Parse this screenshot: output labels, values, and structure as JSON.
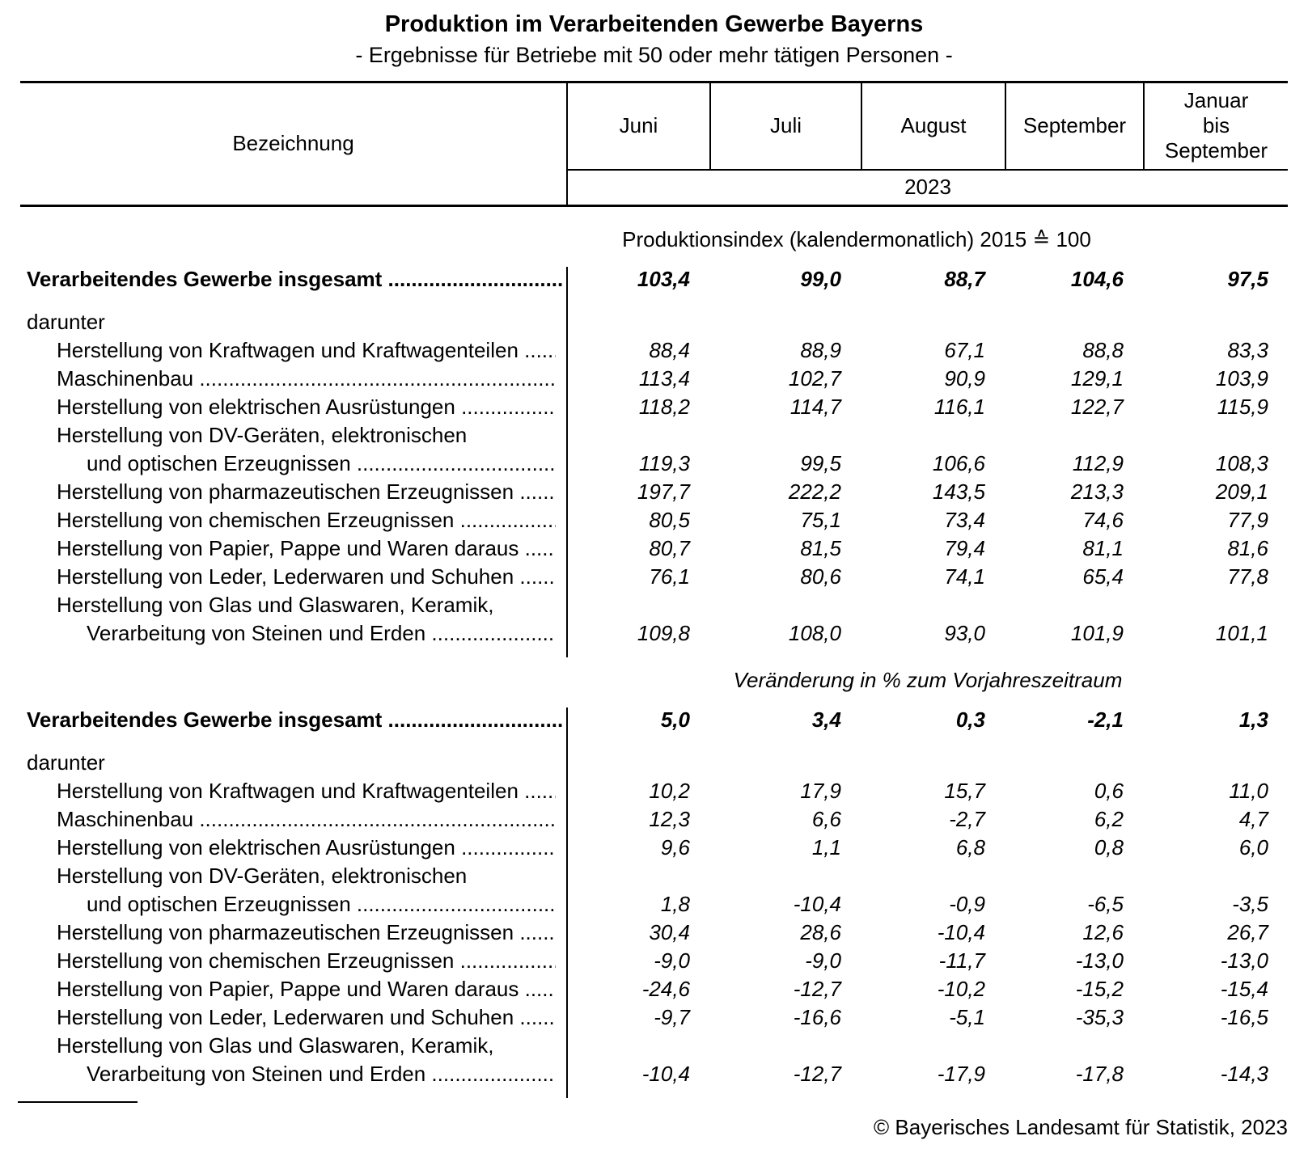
{
  "title": "Produktion im Verarbeitenden Gewerbe Bayerns",
  "subtitle": "- Ergebnisse für Betriebe mit 50 oder mehr tätigen Personen -",
  "header": {
    "label_col": "Bezeichnung",
    "columns": [
      "Juni",
      "Juli",
      "August",
      "September",
      "Januar\nbis\nSeptember"
    ],
    "year": "2023"
  },
  "sections": [
    {
      "heading": "Produktionsindex (kalendermonatlich) 2015 ≙ 100",
      "total": {
        "label": "Verarbeitendes Gewerbe insgesamt ..............................",
        "values": [
          "103,4",
          "99,0",
          "88,7",
          "104,6",
          "97,5"
        ]
      },
      "darunter_label": "darunter",
      "rows": [
        {
          "label_lines": [
            "Herstellung von Kraftwagen und Kraftwagenteilen ........"
          ],
          "values": [
            "88,4",
            "88,9",
            "67,1",
            "88,8",
            "83,3"
          ]
        },
        {
          "label_lines": [
            "Maschinenbau ................................................................"
          ],
          "values": [
            "113,4",
            "102,7",
            "90,9",
            "129,1",
            "103,9"
          ]
        },
        {
          "label_lines": [
            "Herstellung von elektrischen Ausrüstungen .................."
          ],
          "values": [
            "118,2",
            "114,7",
            "116,1",
            "122,7",
            "115,9"
          ]
        },
        {
          "label_lines": [
            "Herstellung von DV-Geräten, elektronischen",
            "und optischen Erzeugnissen ....................................."
          ],
          "values": [
            "119,3",
            "99,5",
            "106,6",
            "112,9",
            "108,3"
          ]
        },
        {
          "label_lines": [
            "Herstellung von pharmazeutischen Erzeugnissen ........."
          ],
          "values": [
            "197,7",
            "222,2",
            "143,5",
            "213,3",
            "209,1"
          ]
        },
        {
          "label_lines": [
            "Herstellung von chemischen Erzeugnissen ..................."
          ],
          "values": [
            "80,5",
            "75,1",
            "73,4",
            "74,6",
            "77,9"
          ]
        },
        {
          "label_lines": [
            "Herstellung von Papier, Pappe und Waren daraus ........"
          ],
          "values": [
            "80,7",
            "81,5",
            "79,4",
            "81,1",
            "81,6"
          ]
        },
        {
          "label_lines": [
            "Herstellung von Leder, Lederwaren und Schuhen ........."
          ],
          "values": [
            "76,1",
            "80,6",
            "74,1",
            "65,4",
            "77,8"
          ]
        },
        {
          "label_lines": [
            "Herstellung von Glas und Glaswaren, Keramik,",
            "Verarbeitung von Steinen und Erden ......................"
          ],
          "values": [
            "109,8",
            "108,0",
            "93,0",
            "101,9",
            "101,1"
          ]
        }
      ]
    },
    {
      "heading": "Veränderung in % zum Vorjahreszeitraum",
      "total": {
        "label": "Verarbeitendes Gewerbe insgesamt ..............................",
        "values": [
          "5,0",
          "3,4",
          "0,3",
          "-2,1",
          "1,3"
        ]
      },
      "darunter_label": "darunter",
      "rows": [
        {
          "label_lines": [
            "Herstellung von Kraftwagen und Kraftwagenteilen ........"
          ],
          "values": [
            "10,2",
            "17,9",
            "15,7",
            "0,6",
            "11,0"
          ]
        },
        {
          "label_lines": [
            "Maschinenbau ................................................................"
          ],
          "values": [
            "12,3",
            "6,6",
            "-2,7",
            "6,2",
            "4,7"
          ]
        },
        {
          "label_lines": [
            "Herstellung von elektrischen Ausrüstungen .................."
          ],
          "values": [
            "9,6",
            "1,1",
            "6,8",
            "0,8",
            "6,0"
          ]
        },
        {
          "label_lines": [
            "Herstellung von DV-Geräten, elektronischen",
            "und optischen Erzeugnissen ....................................."
          ],
          "values": [
            "1,8",
            "-10,4",
            "-0,9",
            "-6,5",
            "-3,5"
          ]
        },
        {
          "label_lines": [
            "Herstellung von pharmazeutischen Erzeugnissen ........."
          ],
          "values": [
            "30,4",
            "28,6",
            "-10,4",
            "12,6",
            "26,7"
          ]
        },
        {
          "label_lines": [
            "Herstellung von chemischen Erzeugnissen ..................."
          ],
          "values": [
            "-9,0",
            "-9,0",
            "-11,7",
            "-13,0",
            "-13,0"
          ]
        },
        {
          "label_lines": [
            "Herstellung von Papier, Pappe und Waren daraus ........"
          ],
          "values": [
            "-24,6",
            "-12,7",
            "-10,2",
            "-15,2",
            "-15,4"
          ]
        },
        {
          "label_lines": [
            "Herstellung von Leder, Lederwaren und Schuhen ........."
          ],
          "values": [
            "-9,7",
            "-16,6",
            "-5,1",
            "-35,3",
            "-16,5"
          ]
        },
        {
          "label_lines": [
            "Herstellung von Glas und Glaswaren, Keramik,",
            "Verarbeitung von Steinen und Erden ......................"
          ],
          "values": [
            "-10,4",
            "-12,7",
            "-17,9",
            "-17,8",
            "-14,3"
          ]
        }
      ]
    }
  ],
  "footer": "© Bayerisches Landesamt für Statistik, 2023"
}
